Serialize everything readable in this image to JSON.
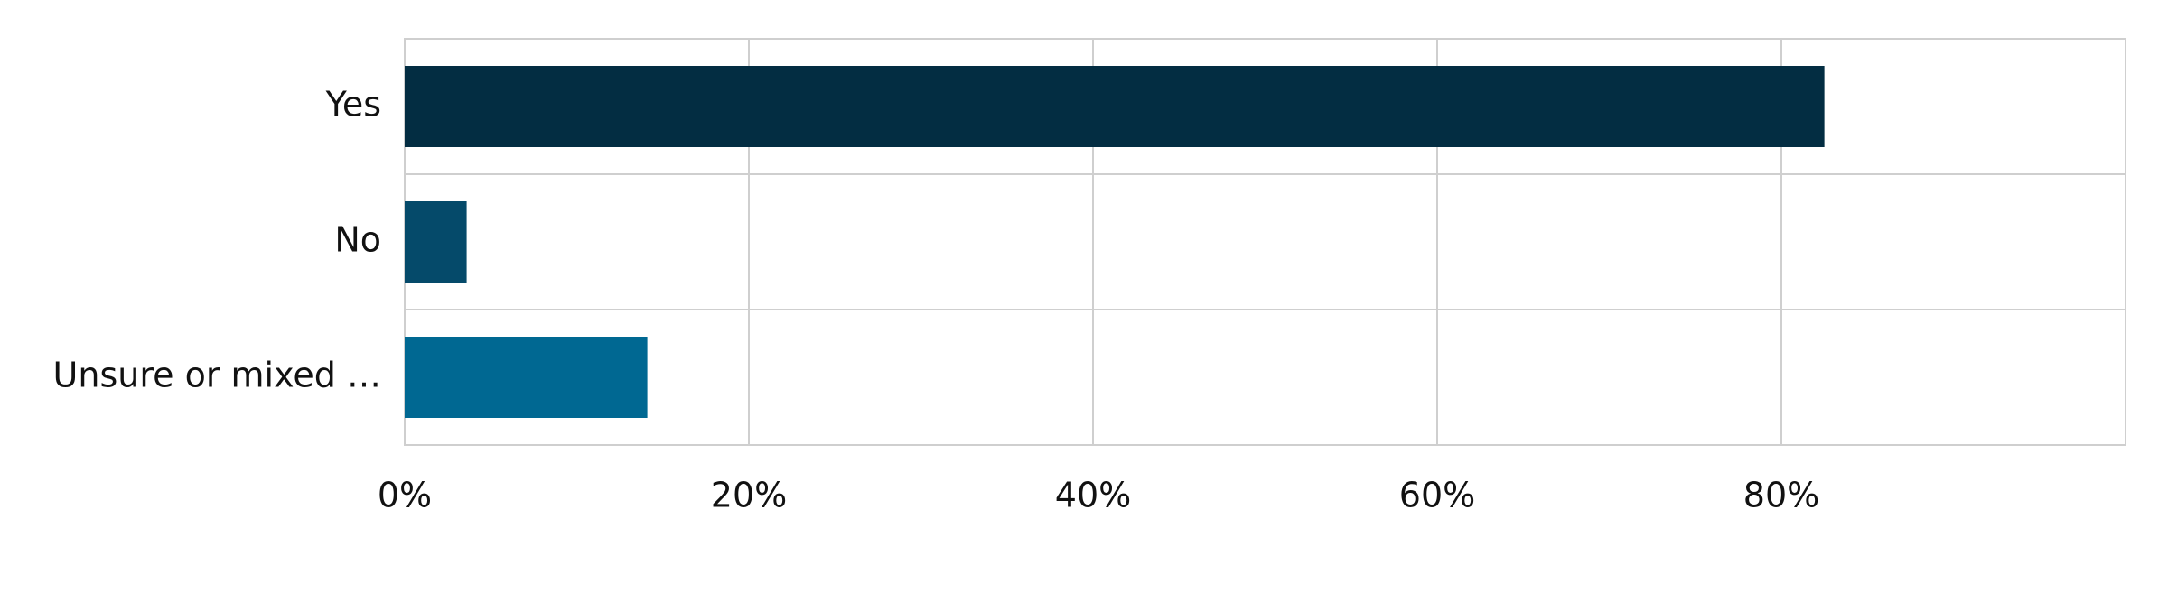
{
  "chart_data": {
    "type": "hbar",
    "categories": [
      "Yes",
      "No",
      "Unsure or mixed …"
    ],
    "values": [
      82.5,
      3.6,
      14.1
    ],
    "colors": [
      "#032d42",
      "#054a6a",
      "#006892"
    ],
    "xlim": [
      0,
      100
    ],
    "xticks": [
      {
        "value": 0,
        "label": "0%"
      },
      {
        "value": 20,
        "label": "20%"
      },
      {
        "value": 40,
        "label": "40%"
      },
      {
        "value": 60,
        "label": "60%"
      },
      {
        "value": 80,
        "label": "80%"
      }
    ],
    "grid": true
  }
}
